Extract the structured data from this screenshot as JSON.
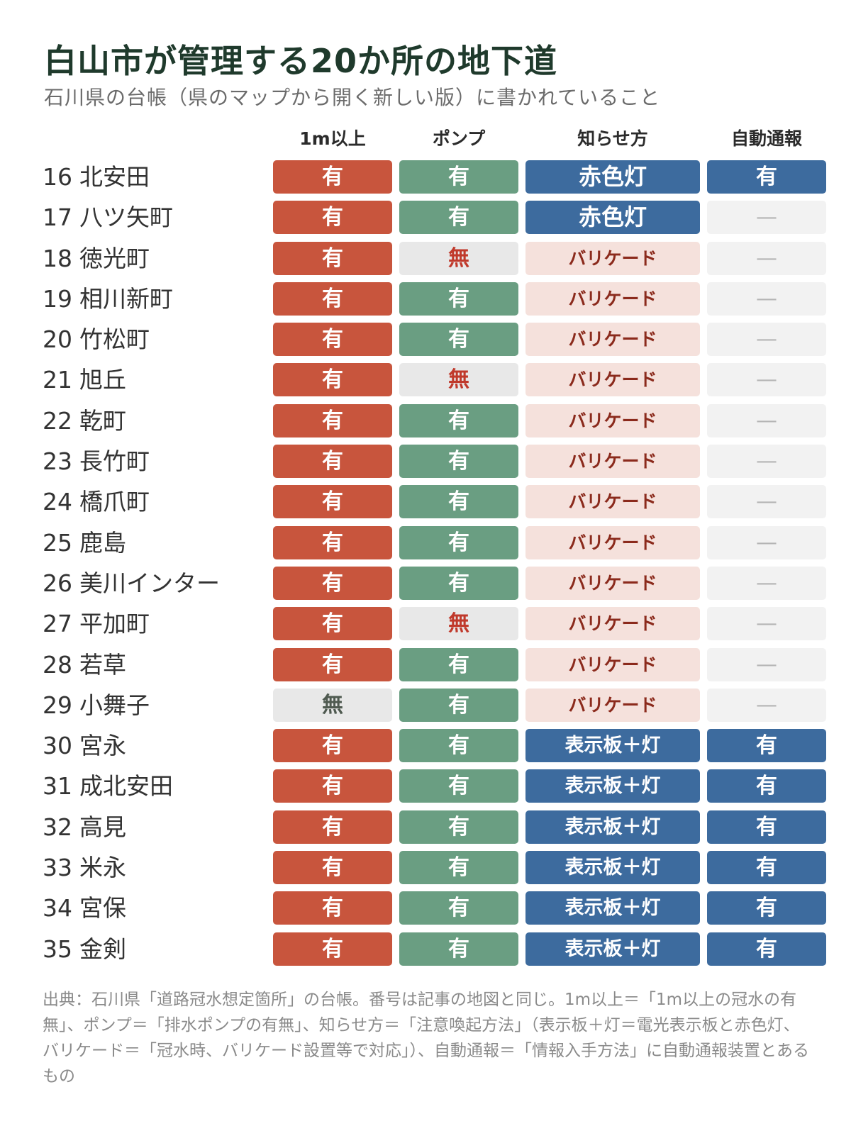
{
  "title": "白山市が管理する20か所の地下道",
  "subtitle": "石川県の台帳（県のマップから開く新しい版）に書かれていること",
  "chart_data": {
    "type": "table",
    "columns": [
      "1m以上",
      "ポンプ",
      "知らせ方",
      "自動通報"
    ],
    "rows": [
      {
        "no": "16",
        "name": "北安田",
        "values": [
          "有",
          "有",
          "赤色灯",
          "有"
        ]
      },
      {
        "no": "17",
        "name": "八ツ矢町",
        "values": [
          "有",
          "有",
          "赤色灯",
          "—"
        ]
      },
      {
        "no": "18",
        "name": "徳光町",
        "values": [
          "有",
          "無",
          "バリケード",
          "—"
        ]
      },
      {
        "no": "19",
        "name": "相川新町",
        "values": [
          "有",
          "有",
          "バリケード",
          "—"
        ]
      },
      {
        "no": "20",
        "name": "竹松町",
        "values": [
          "有",
          "有",
          "バリケード",
          "—"
        ]
      },
      {
        "no": "21",
        "name": "旭丘",
        "values": [
          "有",
          "無",
          "バリケード",
          "—"
        ]
      },
      {
        "no": "22",
        "name": "乾町",
        "values": [
          "有",
          "有",
          "バリケード",
          "—"
        ]
      },
      {
        "no": "23",
        "name": "長竹町",
        "values": [
          "有",
          "有",
          "バリケード",
          "—"
        ]
      },
      {
        "no": "24",
        "name": "橋爪町",
        "values": [
          "有",
          "有",
          "バリケード",
          "—"
        ]
      },
      {
        "no": "25",
        "name": "鹿島",
        "values": [
          "有",
          "有",
          "バリケード",
          "—"
        ]
      },
      {
        "no": "26",
        "name": "美川インター",
        "values": [
          "有",
          "有",
          "バリケード",
          "—"
        ]
      },
      {
        "no": "27",
        "name": "平加町",
        "values": [
          "有",
          "無",
          "バリケード",
          "—"
        ]
      },
      {
        "no": "28",
        "name": "若草",
        "values": [
          "有",
          "有",
          "バリケード",
          "—"
        ]
      },
      {
        "no": "29",
        "name": "小舞子",
        "values": [
          "無",
          "有",
          "バリケード",
          "—"
        ]
      },
      {
        "no": "30",
        "name": "宮永",
        "values": [
          "有",
          "有",
          "表示板＋灯",
          "有"
        ]
      },
      {
        "no": "31",
        "name": "成北安田",
        "values": [
          "有",
          "有",
          "表示板＋灯",
          "有"
        ]
      },
      {
        "no": "32",
        "name": "高見",
        "values": [
          "有",
          "有",
          "表示板＋灯",
          "有"
        ]
      },
      {
        "no": "33",
        "name": "米永",
        "values": [
          "有",
          "有",
          "表示板＋灯",
          "有"
        ]
      },
      {
        "no": "34",
        "name": "宮保",
        "values": [
          "有",
          "有",
          "表示板＋灯",
          "有"
        ]
      },
      {
        "no": "35",
        "name": "金剣",
        "values": [
          "有",
          "有",
          "表示板＋灯",
          "有"
        ]
      }
    ]
  },
  "colors": {
    "col1_yes_bg": "#c8553d",
    "col1_yes_fg": "#ffffff",
    "col2_yes_bg": "#6a9e82",
    "col2_yes_fg": "#ffffff",
    "blue_bg": "#3d6b9e",
    "blue_fg": "#ffffff",
    "no_bg": "#e8e8e8",
    "no_fg_col1": "#4f5a50",
    "no_fg_col2": "#c0392b",
    "barricade_bg": "#f5e1dc",
    "barricade_fg": "#8b2a1c",
    "dash_bg": "#f2f2f2",
    "dash_fg": "#b5b5b5"
  },
  "source": "出典：石川県「道路冠水想定箇所」の台帳。番号は記事の地図と同じ。1m以上＝「1m以上の冠水の有無」、ポンプ＝「排水ポンプの有無」、知らせ方＝「注意喚起方法」（表示板＋灯＝電光表示板と赤色灯、バリケード＝「冠水時、バリケード設置等で対応」）、自動通報＝「情報入手方法」に自動通報装置とあるもの"
}
